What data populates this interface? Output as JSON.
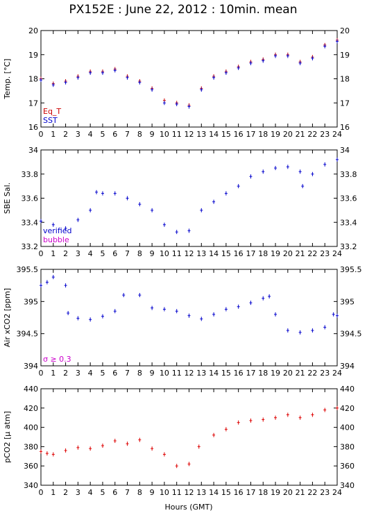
{
  "title": "PX152E : June 22, 2012 : 10min. mean",
  "xaxis": {
    "label": "Hours (GMT)",
    "range": [
      0,
      24
    ],
    "ticks": [
      "0",
      "1",
      "2",
      "3",
      "4",
      "5",
      "6",
      "7",
      "8",
      "9",
      "10",
      "11",
      "12",
      "13",
      "14",
      "15",
      "16",
      "17",
      "18",
      "19",
      "20",
      "21",
      "22",
      "23",
      "24"
    ]
  },
  "colors": {
    "eqt": "#cc0000",
    "sst": "#0000cc",
    "verified": "#0000cc",
    "bubble": "#cc00cc",
    "pco2": "#dd0000"
  },
  "chart_data": [
    {
      "type": "scatter",
      "ylabel": "Temp. [°C]",
      "ylim": [
        16,
        20
      ],
      "yticks": [
        "16",
        "17",
        "18",
        "19",
        "20"
      ],
      "legend": [
        "Eq_T",
        "SST"
      ],
      "series": [
        {
          "name": "Eq_T",
          "x": [
            0,
            1,
            2,
            3,
            4,
            5,
            6,
            7,
            8,
            9,
            10,
            11,
            12,
            13,
            14,
            15,
            16,
            17,
            18,
            19,
            20,
            21,
            22,
            23,
            24
          ],
          "y": [
            18.0,
            17.8,
            17.9,
            18.1,
            18.3,
            18.3,
            18.4,
            18.1,
            17.9,
            17.6,
            17.1,
            17.0,
            16.9,
            17.6,
            18.1,
            18.3,
            18.5,
            18.7,
            18.8,
            19.0,
            19.0,
            18.7,
            18.9,
            19.4,
            19.6
          ]
        },
        {
          "name": "SST",
          "x": [
            0,
            1,
            2,
            3,
            4,
            5,
            6,
            7,
            8,
            9,
            10,
            11,
            12,
            13,
            14,
            15,
            16,
            17,
            18,
            19,
            20,
            21,
            22,
            23,
            24
          ],
          "y": [
            17.95,
            17.75,
            17.85,
            18.05,
            18.25,
            18.25,
            18.35,
            18.05,
            17.85,
            17.55,
            17.0,
            16.95,
            16.85,
            17.55,
            18.05,
            18.25,
            18.45,
            18.65,
            18.75,
            18.95,
            18.95,
            18.65,
            18.85,
            19.35,
            19.55
          ]
        }
      ]
    },
    {
      "type": "scatter",
      "ylabel": "SBE Sal.",
      "ylim": [
        33.2,
        34.0
      ],
      "yticks": [
        "33.2",
        "33.4",
        "33.6",
        "33.8",
        "34"
      ],
      "legend": [
        "verified",
        "bubble"
      ],
      "series": [
        {
          "name": "verified",
          "x": [
            0,
            1,
            2,
            3,
            4,
            4.5,
            5,
            6,
            7,
            8,
            9,
            10,
            11,
            12,
            13,
            14,
            15,
            16,
            17,
            18,
            19,
            20,
            21,
            21.2,
            22,
            23,
            24
          ],
          "y": [
            33.41,
            33.38,
            33.35,
            33.42,
            33.5,
            33.65,
            33.64,
            33.64,
            33.6,
            33.55,
            33.5,
            33.38,
            33.32,
            33.33,
            33.5,
            33.57,
            33.64,
            33.7,
            33.78,
            33.82,
            33.85,
            33.86,
            33.82,
            33.7,
            33.8,
            33.88,
            33.92
          ]
        }
      ]
    },
    {
      "type": "scatter",
      "ylabel": "Air xCO2 [ppm]",
      "ylim": [
        394,
        395.5
      ],
      "yticks": [
        "394",
        "394.5",
        "395",
        "395.5"
      ],
      "legend": [
        "σ ≥ 0.3"
      ],
      "series": [
        {
          "name": "Air xCO2",
          "x": [
            0,
            0.5,
            1,
            2,
            2.2,
            3,
            4,
            5,
            6,
            6.7,
            8,
            9,
            10,
            11,
            12,
            13,
            14,
            15,
            16,
            17,
            18,
            18.5,
            19,
            20,
            21,
            22,
            23,
            23.7,
            24
          ],
          "y": [
            395.25,
            395.3,
            395.38,
            395.25,
            394.82,
            394.74,
            394.72,
            394.77,
            394.85,
            395.1,
            395.1,
            394.9,
            394.88,
            394.85,
            394.78,
            394.73,
            394.8,
            394.88,
            394.92,
            394.98,
            395.05,
            395.08,
            394.8,
            394.55,
            394.52,
            394.55,
            394.6,
            394.8,
            394.78
          ]
        }
      ]
    },
    {
      "type": "scatter",
      "ylabel": "pCO2 [µ atm]",
      "ylim": [
        340,
        440
      ],
      "yticks": [
        "340",
        "360",
        "380",
        "400",
        "420",
        "440"
      ],
      "series": [
        {
          "name": "pCO2",
          "x": [
            0,
            0.5,
            1,
            2,
            3,
            4,
            5,
            6,
            7,
            8,
            9,
            10,
            11,
            12,
            12.8,
            14,
            15,
            16,
            17,
            18,
            19,
            20,
            21,
            22,
            23,
            24
          ],
          "y": [
            375,
            373,
            372,
            376,
            379,
            378,
            381,
            386,
            383,
            387,
            378,
            372,
            360,
            362,
            380,
            392,
            398,
            405,
            407,
            408,
            410,
            413,
            410,
            413,
            418,
            420
          ]
        }
      ]
    }
  ]
}
